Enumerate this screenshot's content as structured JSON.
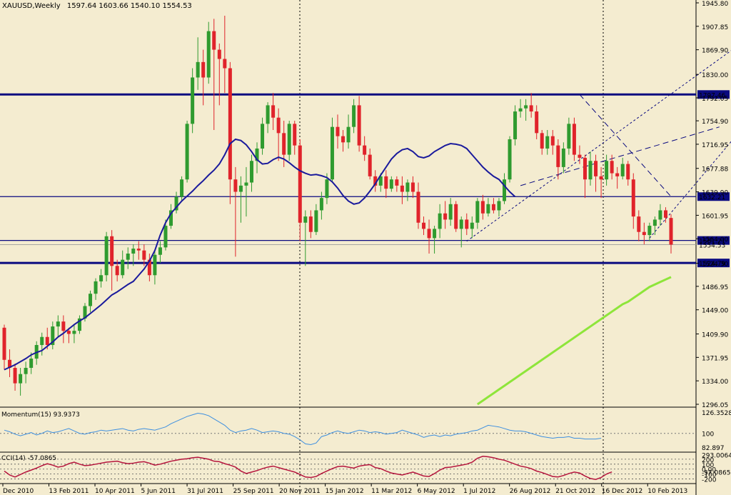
{
  "header": {
    "symbol_timeframe": "XAUUSD,Weekly",
    "ohlc": "1597.64 1603.66 1540.10 1554.53"
  },
  "chart_data": {
    "type": "candlestick",
    "symbol": "XAUUSD",
    "timeframe": "Weekly",
    "colors": {
      "background": "#f4ecd0",
      "bull": "#2f9b2f",
      "bear": "#e0232b",
      "ma_short": "#1a1a9c",
      "ma_long": "#8ee53a",
      "momentum": "#3d8fe0",
      "cci": "#b5143c",
      "hline": "#0a0a80"
    },
    "y_axis": {
      "range": [
        1296.05,
        1945.8
      ],
      "ticks": [
        "1945.80",
        "1907.85",
        "1869.90",
        "1830.00",
        "1792.05",
        "1754.90",
        "1716.95",
        "1677.88",
        "1639.90",
        "1601.95",
        "1564.00",
        "1524.30",
        "1486.95",
        "1449.00",
        "1409.90",
        "1371.95",
        "1334.00",
        "1296.05"
      ]
    },
    "x_axis": {
      "labels": [
        "Dec 2010",
        "13 Feb 2011",
        "10 Apr 2011",
        "5 Jun 2011",
        "31 Jul 2011",
        "25 Sep 2011",
        "20 Nov 2011",
        "15 Jan 2012",
        "11 Mar 2012",
        "6 May 2012",
        "1 Jul 2012",
        "26 Aug 2012",
        "21 Oct 2012",
        "16 Dec 2012",
        "10 Feb 2013"
      ]
    },
    "price_lines": [
      {
        "value": 1797.46,
        "label": "1797.46",
        "weight": "thick"
      },
      {
        "value": 1632.21,
        "label": "1632.21",
        "weight": "thin"
      },
      {
        "value": 1561.21,
        "label": "1561.21",
        "weight": "thin"
      },
      {
        "value": 1554.53,
        "label": "1554.53",
        "weight": "hair"
      },
      {
        "value": 1524.79,
        "label": "1524.79",
        "weight": "thick"
      }
    ],
    "candles": [
      [
        1420,
        1425,
        1352,
        1368
      ],
      [
        1368,
        1385,
        1340,
        1355
      ],
      [
        1355,
        1362,
        1318,
        1330
      ],
      [
        1330,
        1355,
        1310,
        1345
      ],
      [
        1345,
        1365,
        1330,
        1355
      ],
      [
        1355,
        1380,
        1345,
        1370
      ],
      [
        1370,
        1398,
        1360,
        1392
      ],
      [
        1392,
        1412,
        1375,
        1405
      ],
      [
        1405,
        1420,
        1385,
        1392
      ],
      [
        1392,
        1430,
        1385,
        1422
      ],
      [
        1422,
        1440,
        1405,
        1430
      ],
      [
        1430,
        1440,
        1395,
        1415
      ],
      [
        1415,
        1420,
        1395,
        1410
      ],
      [
        1410,
        1425,
        1395,
        1415
      ],
      [
        1415,
        1440,
        1410,
        1435
      ],
      [
        1435,
        1460,
        1430,
        1455
      ],
      [
        1455,
        1480,
        1445,
        1475
      ],
      [
        1475,
        1500,
        1465,
        1495
      ],
      [
        1495,
        1515,
        1485,
        1505
      ],
      [
        1505,
        1575,
        1495,
        1568
      ],
      [
        1568,
        1578,
        1480,
        1520
      ],
      [
        1520,
        1530,
        1495,
        1505
      ],
      [
        1505,
        1545,
        1500,
        1530
      ],
      [
        1530,
        1550,
        1515,
        1540
      ],
      [
        1540,
        1555,
        1520,
        1548
      ],
      [
        1548,
        1560,
        1530,
        1545
      ],
      [
        1545,
        1555,
        1520,
        1530
      ],
      [
        1530,
        1540,
        1495,
        1505
      ],
      [
        1505,
        1545,
        1490,
        1538
      ],
      [
        1538,
        1560,
        1525,
        1550
      ],
      [
        1550,
        1595,
        1545,
        1585
      ],
      [
        1585,
        1620,
        1580,
        1610
      ],
      [
        1610,
        1640,
        1605,
        1632
      ],
      [
        1632,
        1665,
        1625,
        1660
      ],
      [
        1660,
        1755,
        1655,
        1750
      ],
      [
        1750,
        1840,
        1735,
        1825
      ],
      [
        1825,
        1890,
        1805,
        1850
      ],
      [
        1850,
        1870,
        1780,
        1825
      ],
      [
        1825,
        1915,
        1815,
        1900
      ],
      [
        1900,
        1920,
        1740,
        1870
      ],
      [
        1870,
        1880,
        1780,
        1855
      ],
      [
        1855,
        1925,
        1800,
        1840
      ],
      [
        1840,
        1850,
        1620,
        1660
      ],
      [
        1660,
        1680,
        1535,
        1640
      ],
      [
        1640,
        1665,
        1590,
        1650
      ],
      [
        1650,
        1680,
        1600,
        1655
      ],
      [
        1655,
        1700,
        1640,
        1690
      ],
      [
        1690,
        1720,
        1670,
        1710
      ],
      [
        1710,
        1760,
        1700,
        1750
      ],
      [
        1750,
        1785,
        1735,
        1780
      ],
      [
        1780,
        1800,
        1740,
        1760
      ],
      [
        1760,
        1775,
        1690,
        1735
      ],
      [
        1735,
        1755,
        1680,
        1700
      ],
      [
        1700,
        1755,
        1690,
        1750
      ],
      [
        1750,
        1755,
        1700,
        1715
      ],
      [
        1715,
        1725,
        1560,
        1590
      ],
      [
        1590,
        1610,
        1520,
        1600
      ],
      [
        1600,
        1610,
        1565,
        1575
      ],
      [
        1575,
        1620,
        1570,
        1610
      ],
      [
        1610,
        1640,
        1595,
        1630
      ],
      [
        1630,
        1670,
        1620,
        1660
      ],
      [
        1660,
        1760,
        1655,
        1745
      ],
      [
        1745,
        1765,
        1710,
        1730
      ],
      [
        1730,
        1740,
        1705,
        1720
      ],
      [
        1720,
        1765,
        1710,
        1745
      ],
      [
        1745,
        1790,
        1735,
        1780
      ],
      [
        1780,
        1795,
        1705,
        1715
      ],
      [
        1715,
        1730,
        1690,
        1700
      ],
      [
        1700,
        1710,
        1660,
        1665
      ],
      [
        1665,
        1675,
        1640,
        1650
      ],
      [
        1650,
        1670,
        1640,
        1665
      ],
      [
        1665,
        1675,
        1630,
        1645
      ],
      [
        1645,
        1665,
        1640,
        1660
      ],
      [
        1660,
        1665,
        1640,
        1650
      ],
      [
        1650,
        1665,
        1620,
        1640
      ],
      [
        1640,
        1660,
        1625,
        1655
      ],
      [
        1655,
        1665,
        1630,
        1640
      ],
      [
        1640,
        1655,
        1580,
        1590
      ],
      [
        1590,
        1600,
        1570,
        1580
      ],
      [
        1580,
        1595,
        1540,
        1565
      ],
      [
        1565,
        1585,
        1540,
        1580
      ],
      [
        1580,
        1620,
        1565,
        1605
      ],
      [
        1605,
        1625,
        1580,
        1595
      ],
      [
        1595,
        1630,
        1585,
        1620
      ],
      [
        1620,
        1625,
        1575,
        1580
      ],
      [
        1580,
        1600,
        1550,
        1595
      ],
      [
        1595,
        1605,
        1570,
        1580
      ],
      [
        1580,
        1600,
        1565,
        1590
      ],
      [
        1590,
        1630,
        1580,
        1625
      ],
      [
        1625,
        1635,
        1595,
        1605
      ],
      [
        1605,
        1630,
        1600,
        1620
      ],
      [
        1620,
        1630,
        1605,
        1610
      ],
      [
        1610,
        1630,
        1600,
        1625
      ],
      [
        1625,
        1670,
        1620,
        1660
      ],
      [
        1660,
        1730,
        1655,
        1725
      ],
      [
        1725,
        1780,
        1715,
        1770
      ],
      [
        1770,
        1790,
        1760,
        1775
      ],
      [
        1775,
        1790,
        1755,
        1780
      ],
      [
        1780,
        1800,
        1760,
        1770
      ],
      [
        1770,
        1780,
        1725,
        1735
      ],
      [
        1735,
        1740,
        1700,
        1710
      ],
      [
        1710,
        1740,
        1700,
        1730
      ],
      [
        1730,
        1740,
        1700,
        1715
      ],
      [
        1715,
        1725,
        1660,
        1680
      ],
      [
        1680,
        1720,
        1670,
        1710
      ],
      [
        1710,
        1760,
        1700,
        1750
      ],
      [
        1750,
        1760,
        1690,
        1700
      ],
      [
        1700,
        1715,
        1685,
        1695
      ],
      [
        1695,
        1700,
        1630,
        1660
      ],
      [
        1660,
        1705,
        1650,
        1690
      ],
      [
        1690,
        1700,
        1640,
        1665
      ],
      [
        1665,
        1680,
        1630,
        1660
      ],
      [
        1660,
        1700,
        1650,
        1690
      ],
      [
        1690,
        1700,
        1660,
        1670
      ],
      [
        1670,
        1680,
        1645,
        1665
      ],
      [
        1665,
        1695,
        1660,
        1685
      ],
      [
        1685,
        1690,
        1650,
        1660
      ],
      [
        1660,
        1670,
        1580,
        1600
      ],
      [
        1600,
        1610,
        1560,
        1575
      ],
      [
        1575,
        1590,
        1555,
        1570
      ],
      [
        1570,
        1590,
        1560,
        1585
      ],
      [
        1585,
        1600,
        1570,
        1595
      ],
      [
        1595,
        1620,
        1585,
        1610
      ],
      [
        1610,
        1615,
        1590,
        1598
      ],
      [
        1597.64,
        1603.66,
        1540.1,
        1554.53
      ]
    ],
    "ma_short": [
      1352,
      1356,
      1360,
      1365,
      1370,
      1376,
      1380,
      1383,
      1390,
      1397,
      1405,
      1411,
      1418,
      1425,
      1431,
      1436,
      1443,
      1450,
      1457,
      1465,
      1473,
      1478,
      1484,
      1490,
      1495,
      1505,
      1515,
      1528,
      1545,
      1570,
      1590,
      1605,
      1615,
      1625,
      1633,
      1641,
      1650,
      1658,
      1667,
      1675,
      1685,
      1700,
      1718,
      1725,
      1723,
      1716,
      1705,
      1692,
      1685,
      1686,
      1692,
      1696,
      1693,
      1687,
      1680,
      1674,
      1670,
      1667,
      1668,
      1666,
      1663,
      1656,
      1646,
      1634,
      1625,
      1620,
      1622,
      1630,
      1641,
      1653,
      1667,
      1680,
      1693,
      1702,
      1708,
      1710,
      1705,
      1697,
      1695,
      1698,
      1705,
      1710,
      1715,
      1718,
      1717,
      1715,
      1710,
      1700,
      1690,
      1680,
      1672,
      1665,
      1660,
      1650,
      1640,
      1632
    ],
    "ma_long_start_index": 88,
    "ma_long": [
      1296.05,
      1302,
      1308,
      1314,
      1320,
      1326,
      1332,
      1338,
      1344,
      1350,
      1356,
      1362,
      1368,
      1374,
      1380,
      1386,
      1392,
      1398,
      1404,
      1410,
      1416,
      1422,
      1428,
      1434,
      1440,
      1446,
      1452,
      1458,
      1462,
      1468,
      1474,
      1480,
      1486,
      1490,
      1494,
      1498,
      1502
    ],
    "trendlines": [
      {
        "from": [
          107,
          1797.46
        ],
        "to": [
          124,
          1632.21
        ],
        "style": "dashed"
      },
      {
        "from": [
          96,
          1650
        ],
        "to": [
          133,
          1745
        ],
        "style": "dashed"
      },
      {
        "from": [
          86,
          1560
        ],
        "to": [
          137,
          1880
        ],
        "style": "dotted"
      },
      {
        "from": [
          120,
          1565
        ],
        "to": [
          137,
          1740
        ],
        "style": "dotted"
      }
    ],
    "momentum_panel": {
      "label": "Momentum(15) 93.9373",
      "ticks": [
        "126.3528",
        "100",
        "82.897"
      ],
      "range": [
        82.897,
        126.3528
      ],
      "reference": 100,
      "values": [
        104,
        102,
        99,
        97,
        99,
        101,
        98,
        100,
        103,
        101,
        102,
        104,
        106,
        103,
        100,
        99,
        101,
        102,
        104,
        103,
        104,
        105,
        106,
        104,
        103,
        105,
        106,
        105,
        104,
        106,
        108,
        112,
        115,
        118,
        121,
        123,
        125,
        124,
        122,
        118,
        114,
        110,
        104,
        101,
        103,
        104,
        106,
        104,
        101,
        102,
        103,
        102,
        100,
        99,
        96,
        92,
        87,
        86,
        88,
        96,
        98,
        101,
        103,
        101,
        100,
        102,
        104,
        103,
        101,
        102,
        101,
        99,
        100,
        101,
        104,
        102,
        100,
        98,
        95,
        97,
        98,
        96,
        98,
        97,
        99,
        100,
        101,
        103,
        104,
        107,
        110,
        109,
        108,
        106,
        104,
        103,
        103,
        102,
        100,
        98,
        96,
        95,
        94,
        95,
        95,
        96,
        94,
        94,
        93,
        93,
        93,
        93.9373
      ]
    },
    "cci_panel": {
      "label": "CCI(14) -57.0865",
      "ticks": [
        "293.0064",
        "200",
        "100",
        "0.00",
        "-100",
        "-200",
        "-57.0865"
      ],
      "range": [
        -250,
        300
      ],
      "levels": [
        200,
        100,
        0,
        -100,
        -200
      ],
      "values": [
        -40,
        -120,
        -160,
        -110,
        -60,
        -20,
        20,
        70,
        110,
        80,
        40,
        60,
        110,
        140,
        100,
        70,
        80,
        100,
        120,
        140,
        150,
        160,
        130,
        110,
        120,
        140,
        150,
        120,
        80,
        100,
        130,
        160,
        180,
        200,
        210,
        230,
        240,
        220,
        200,
        160,
        150,
        110,
        80,
        40,
        -40,
        -90,
        -60,
        -30,
        10,
        40,
        60,
        30,
        0,
        -30,
        -60,
        -110,
        -160,
        -170,
        -150,
        -90,
        -40,
        10,
        50,
        60,
        40,
        20,
        60,
        80,
        90,
        30,
        10,
        -40,
        -80,
        -100,
        -120,
        -90,
        -60,
        -100,
        -140,
        -150,
        -90,
        -20,
        30,
        40,
        60,
        80,
        100,
        140,
        220,
        260,
        250,
        230,
        200,
        180,
        140,
        100,
        60,
        40,
        10,
        -40,
        -70,
        -110,
        -150,
        -160,
        -130,
        -90,
        -60,
        -80,
        -140,
        -190,
        -210,
        -170,
        -100,
        -57.0865
      ]
    }
  }
}
